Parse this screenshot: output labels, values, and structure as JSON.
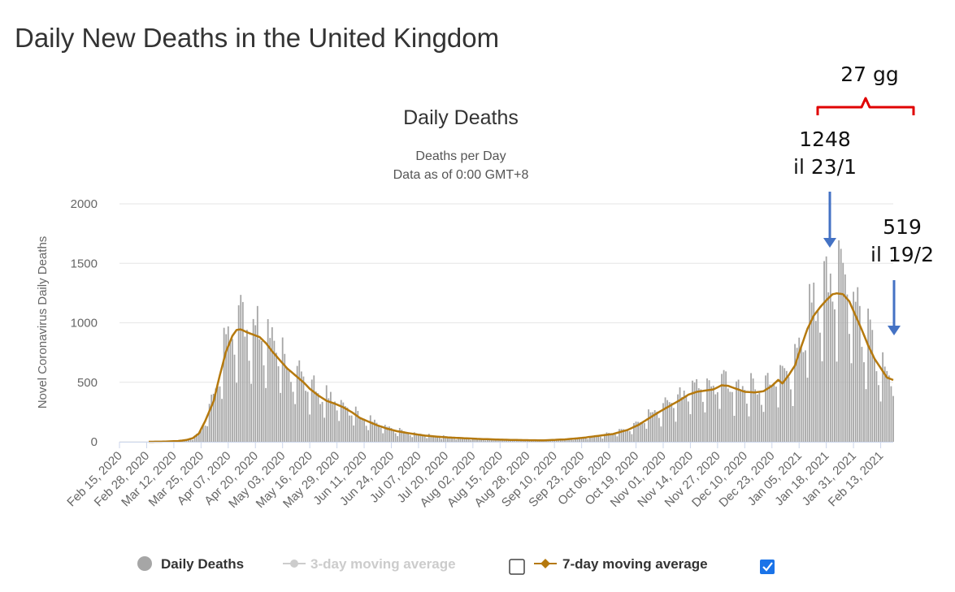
{
  "page": {
    "title": "Daily New Deaths in the United Kingdom"
  },
  "chart_data": {
    "type": "bar",
    "title": "Daily Deaths",
    "subtitle": [
      "Deaths per Day",
      "Data as of 0:00 GMT+8"
    ],
    "ylabel": "Novel Coronavirus Daily Deaths",
    "xlabel": "",
    "ylim": [
      0,
      2000
    ],
    "yticks": [
      "0",
      "500",
      "1000",
      "1500",
      "2000"
    ],
    "xticks": [
      "Feb 15, 2020",
      "Feb 28, 2020",
      "Mar 12, 2020",
      "Mar 25, 2020",
      "Apr 07, 2020",
      "Apr 20, 2020",
      "May 03, 2020",
      "May 16, 2020",
      "May 29, 2020",
      "Jun 11, 2020",
      "Jun 24, 2020",
      "Jul 07, 2020",
      "Jul 20, 2020",
      "Aug 02, 2020",
      "Aug 15, 2020",
      "Aug 28, 2020",
      "Sep 10, 2020",
      "Sep 23, 2020",
      "Oct 06, 2020",
      "Oct 19, 2020",
      "Nov 01, 2020",
      "Nov 14, 2020",
      "Nov 27, 2020",
      "Dec 10, 2020",
      "Dec 23, 2020",
      "Jan 05, 2021",
      "Jan 18, 2021",
      "Jan 31, 2021",
      "Feb 13, 2021"
    ],
    "x_start": "Feb 15, 2020",
    "x_end": "Feb 19, 2021",
    "grid": true,
    "legend_position": "bottom",
    "colors": {
      "bars": "#a6a6a6",
      "ma7": "#b5790e",
      "ma3": "#cccccc",
      "grid": "#e6e6e6",
      "axis": "#999999",
      "checkbox": "#1a73e8"
    },
    "legend": [
      {
        "label": "Daily Deaths",
        "style": "dot",
        "enabled": true
      },
      {
        "label": "3-day moving average",
        "style": "line-dot",
        "enabled": false,
        "checkbox": false
      },
      {
        "label": "7-day moving average",
        "style": "line-diamond",
        "enabled": true,
        "checkbox": true
      }
    ],
    "series": [
      {
        "name": "Daily Deaths",
        "type": "bar"
      },
      {
        "name": "7-day moving average",
        "type": "line",
        "points": [
          [
            "Feb 15, 2020",
            0
          ],
          [
            "Mar 01, 2020",
            0
          ],
          [
            "Mar 06, 2020",
            1
          ],
          [
            "Mar 14, 2020",
            6
          ],
          [
            "Mar 18, 2020",
            15
          ],
          [
            "Mar 21, 2020",
            30
          ],
          [
            "Mar 24, 2020",
            70
          ],
          [
            "Mar 27, 2020",
            175
          ],
          [
            "Mar 31, 2020",
            340
          ],
          [
            "Apr 03, 2020",
            560
          ],
          [
            "Apr 06, 2020",
            760
          ],
          [
            "Apr 09, 2020",
            890
          ],
          [
            "Apr 11, 2020",
            940
          ],
          [
            "Apr 13, 2020",
            945
          ],
          [
            "Apr 16, 2020",
            920
          ],
          [
            "Apr 19, 2020",
            900
          ],
          [
            "Apr 22, 2020",
            880
          ],
          [
            "Apr 25, 2020",
            830
          ],
          [
            "Apr 28, 2020",
            760
          ],
          [
            "May 01, 2020",
            700
          ],
          [
            "May 05, 2020",
            620
          ],
          [
            "May 09, 2020",
            560
          ],
          [
            "May 13, 2020",
            500
          ],
          [
            "May 16, 2020",
            445
          ],
          [
            "May 20, 2020",
            390
          ],
          [
            "May 24, 2020",
            345
          ],
          [
            "May 28, 2020",
            320
          ],
          [
            "Jun 01, 2020",
            290
          ],
          [
            "Jun 05, 2020",
            250
          ],
          [
            "Jun 09, 2020",
            200
          ],
          [
            "Jun 13, 2020",
            170
          ],
          [
            "Jun 17, 2020",
            140
          ],
          [
            "Jun 22, 2020",
            110
          ],
          [
            "Jun 27, 2020",
            88
          ],
          [
            "Jul 03, 2020",
            70
          ],
          [
            "Jul 10, 2020",
            52
          ],
          [
            "Jul 18, 2020",
            40
          ],
          [
            "Jul 26, 2020",
            32
          ],
          [
            "Aug 05, 2020",
            24
          ],
          [
            "Aug 15, 2020",
            18
          ],
          [
            "Aug 25, 2020",
            14
          ],
          [
            "Sep 05, 2020",
            12
          ],
          [
            "Sep 15, 2020",
            20
          ],
          [
            "Sep 23, 2020",
            32
          ],
          [
            "Oct 01, 2020",
            50
          ],
          [
            "Oct 08, 2020",
            65
          ],
          [
            "Oct 15, 2020",
            100
          ],
          [
            "Oct 20, 2020",
            140
          ],
          [
            "Oct 25, 2020",
            195
          ],
          [
            "Oct 30, 2020",
            250
          ],
          [
            "Nov 04, 2020",
            300
          ],
          [
            "Nov 09, 2020",
            350
          ],
          [
            "Nov 13, 2020",
            395
          ],
          [
            "Nov 17, 2020",
            420
          ],
          [
            "Nov 21, 2020",
            430
          ],
          [
            "Nov 25, 2020",
            440
          ],
          [
            "Nov 29, 2020",
            475
          ],
          [
            "Dec 02, 2020",
            470
          ],
          [
            "Dec 06, 2020",
            445
          ],
          [
            "Dec 10, 2020",
            420
          ],
          [
            "Dec 15, 2020",
            415
          ],
          [
            "Dec 19, 2020",
            425
          ],
          [
            "Dec 23, 2020",
            470
          ],
          [
            "Dec 26, 2020",
            520
          ],
          [
            "Dec 28, 2020",
            490
          ],
          [
            "Dec 31, 2020",
            560
          ],
          [
            "Jan 03, 2021",
            640
          ],
          [
            "Jan 06, 2021",
            800
          ],
          [
            "Jan 09, 2021",
            950
          ],
          [
            "Jan 12, 2021",
            1060
          ],
          [
            "Jan 15, 2021",
            1130
          ],
          [
            "Jan 18, 2021",
            1190
          ],
          [
            "Jan 21, 2021",
            1240
          ],
          [
            "Jan 23, 2021",
            1248
          ],
          [
            "Jan 26, 2021",
            1240
          ],
          [
            "Jan 29, 2021",
            1180
          ],
          [
            "Feb 01, 2021",
            1060
          ],
          [
            "Feb 04, 2021",
            940
          ],
          [
            "Feb 07, 2021",
            810
          ],
          [
            "Feb 10, 2021",
            700
          ],
          [
            "Feb 13, 2021",
            620
          ],
          [
            "Feb 16, 2021",
            540
          ],
          [
            "Feb 19, 2021",
            519
          ]
        ]
      }
    ],
    "annotations": [
      {
        "lines": [
          "1248",
          "il 23/1"
        ],
        "date": "Jan 23, 2021",
        "value": 1248
      },
      {
        "lines": [
          "519",
          "il 19/2"
        ],
        "date": "Feb 19, 2021",
        "value": 519
      },
      {
        "text": "27 gg",
        "span": [
          "Jan 23, 2021",
          "Feb 19, 2021"
        ]
      }
    ],
    "annotation_colors": {
      "arrow": "#4472c4",
      "brace": "#e00000"
    }
  }
}
